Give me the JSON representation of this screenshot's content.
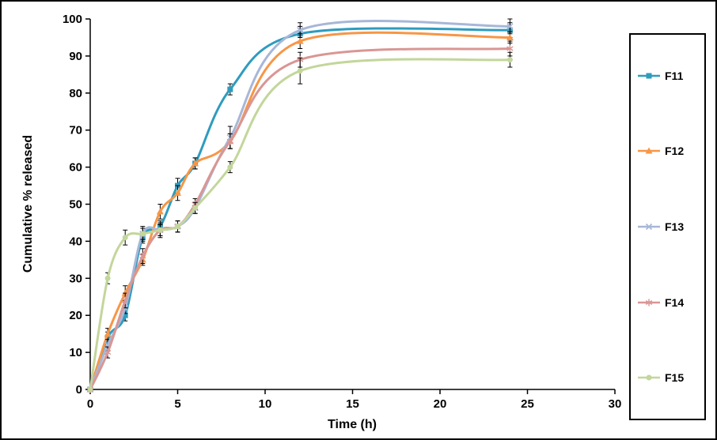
{
  "figure": {
    "background": "#ffffff",
    "border_color": "#000000"
  },
  "chart_data": {
    "type": "line",
    "title": "",
    "xlabel": "Time (h)",
    "ylabel": "Cumulative % released",
    "xlim": [
      0,
      30
    ],
    "ylim": [
      0,
      100
    ],
    "x_ticks": [
      0,
      5,
      10,
      15,
      20,
      25,
      30
    ],
    "y_ticks": [
      0,
      10,
      20,
      30,
      40,
      50,
      60,
      70,
      80,
      90,
      100
    ],
    "grid": false,
    "legend_position": "right",
    "error_bars": true,
    "x": [
      0,
      1,
      2,
      3,
      4,
      5,
      6,
      8,
      12,
      24
    ],
    "series": [
      {
        "name": "F11",
        "color": "#2E9CBE",
        "marker": "square",
        "values": [
          0,
          14,
          20,
          41,
          44,
          55,
          61,
          81,
          96,
          97
        ],
        "errors": [
          0,
          1.5,
          1.5,
          1.5,
          1.5,
          2,
          1.5,
          1.5,
          2,
          2
        ]
      },
      {
        "name": "F12",
        "color": "#F79646",
        "marker": "triangle",
        "values": [
          0,
          15,
          26,
          35,
          48,
          53,
          61,
          67,
          94,
          95
        ],
        "errors": [
          0,
          1.5,
          2,
          1.5,
          2,
          2,
          1.5,
          2,
          2,
          1.5
        ]
      },
      {
        "name": "F13",
        "color": "#A7B7D7",
        "marker": "x",
        "values": [
          0,
          12,
          22,
          42,
          43,
          44,
          49,
          68,
          97,
          98
        ],
        "errors": [
          0,
          1.5,
          1.5,
          2,
          1.5,
          1.5,
          1.5,
          3,
          2,
          2
        ]
      },
      {
        "name": "F14",
        "color": "#D99694",
        "marker": "asterisk",
        "values": [
          0,
          10,
          24,
          36,
          43,
          44,
          50,
          67,
          89,
          92
        ],
        "errors": [
          0,
          1.5,
          2,
          2,
          2,
          1.5,
          1.5,
          2,
          2,
          2
        ]
      },
      {
        "name": "F15",
        "color": "#C3D69B",
        "marker": "circle",
        "values": [
          0,
          30,
          41,
          42,
          43,
          44,
          49,
          60,
          86,
          89
        ],
        "errors": [
          0,
          1.5,
          2,
          1.5,
          1.5,
          1.5,
          1.5,
          1.5,
          3.5,
          2
        ]
      }
    ]
  }
}
